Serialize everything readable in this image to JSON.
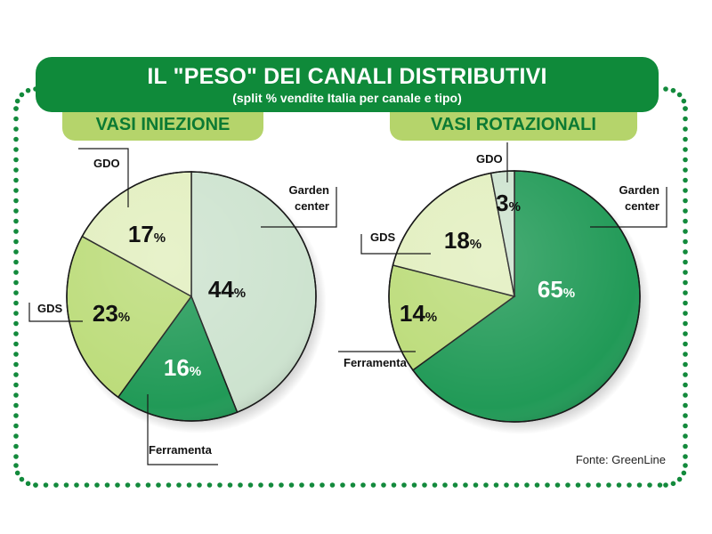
{
  "header": {
    "title": "IL \"PESO\" DEI CANALI DISTRIBUTIVI",
    "subtitle": "(split % vendite Italia per canale e tipo)"
  },
  "source": "Fonte: GreenLine",
  "colors": {
    "brand_green": "#0f8a3a",
    "tab_green": "#b5d46b",
    "border_dots": "#138a3c"
  },
  "chart_data": [
    {
      "type": "pie",
      "title": "VASI INIEZIONE",
      "unit": "%",
      "slices": [
        {
          "label": "Garden center",
          "value": 44,
          "color": "#cde3cf",
          "text_color": "#111111"
        },
        {
          "label": "Ferramenta",
          "value": 16,
          "color": "#219a57",
          "text_color": "#ffffff"
        },
        {
          "label": "GDS",
          "value": 23,
          "color": "#bcdc7a",
          "text_color": "#111111"
        },
        {
          "label": "GDO",
          "value": 17,
          "color": "#e2efbf",
          "text_color": "#111111"
        }
      ]
    },
    {
      "type": "pie",
      "title": "VASI ROTAZIONALI",
      "unit": "%",
      "slices": [
        {
          "label": "Garden center",
          "value": 65,
          "color": "#219a57",
          "text_color": "#ffffff"
        },
        {
          "label": "Ferramenta",
          "value": 14,
          "color": "#bcdc7a",
          "text_color": "#111111"
        },
        {
          "label": "GDS",
          "value": 18,
          "color": "#e2efbf",
          "text_color": "#111111"
        },
        {
          "label": "GDO",
          "value": 3,
          "color": "#cde3cf",
          "text_color": "#111111"
        }
      ]
    }
  ]
}
